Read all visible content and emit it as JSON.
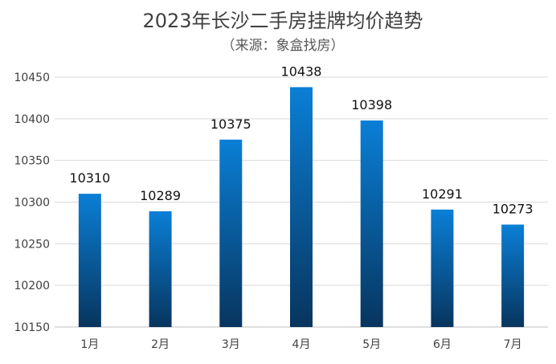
{
  "chart_data": {
    "type": "bar",
    "title": "2023年长沙二手房挂牌均价趋势",
    "subtitle": "（来源：象盒找房）",
    "categories": [
      "1月",
      "2月",
      "3月",
      "4月",
      "5月",
      "6月",
      "7月"
    ],
    "values": [
      10310,
      10289,
      10375,
      10438,
      10398,
      10291,
      10273
    ],
    "ylim": [
      10150,
      10450
    ],
    "yticks": [
      10150,
      10200,
      10250,
      10300,
      10350,
      10400,
      10450
    ],
    "grid": true,
    "legend": "none",
    "colors": {
      "bar_top": "#0a7fd6",
      "bar_bottom": "#08355e"
    }
  }
}
